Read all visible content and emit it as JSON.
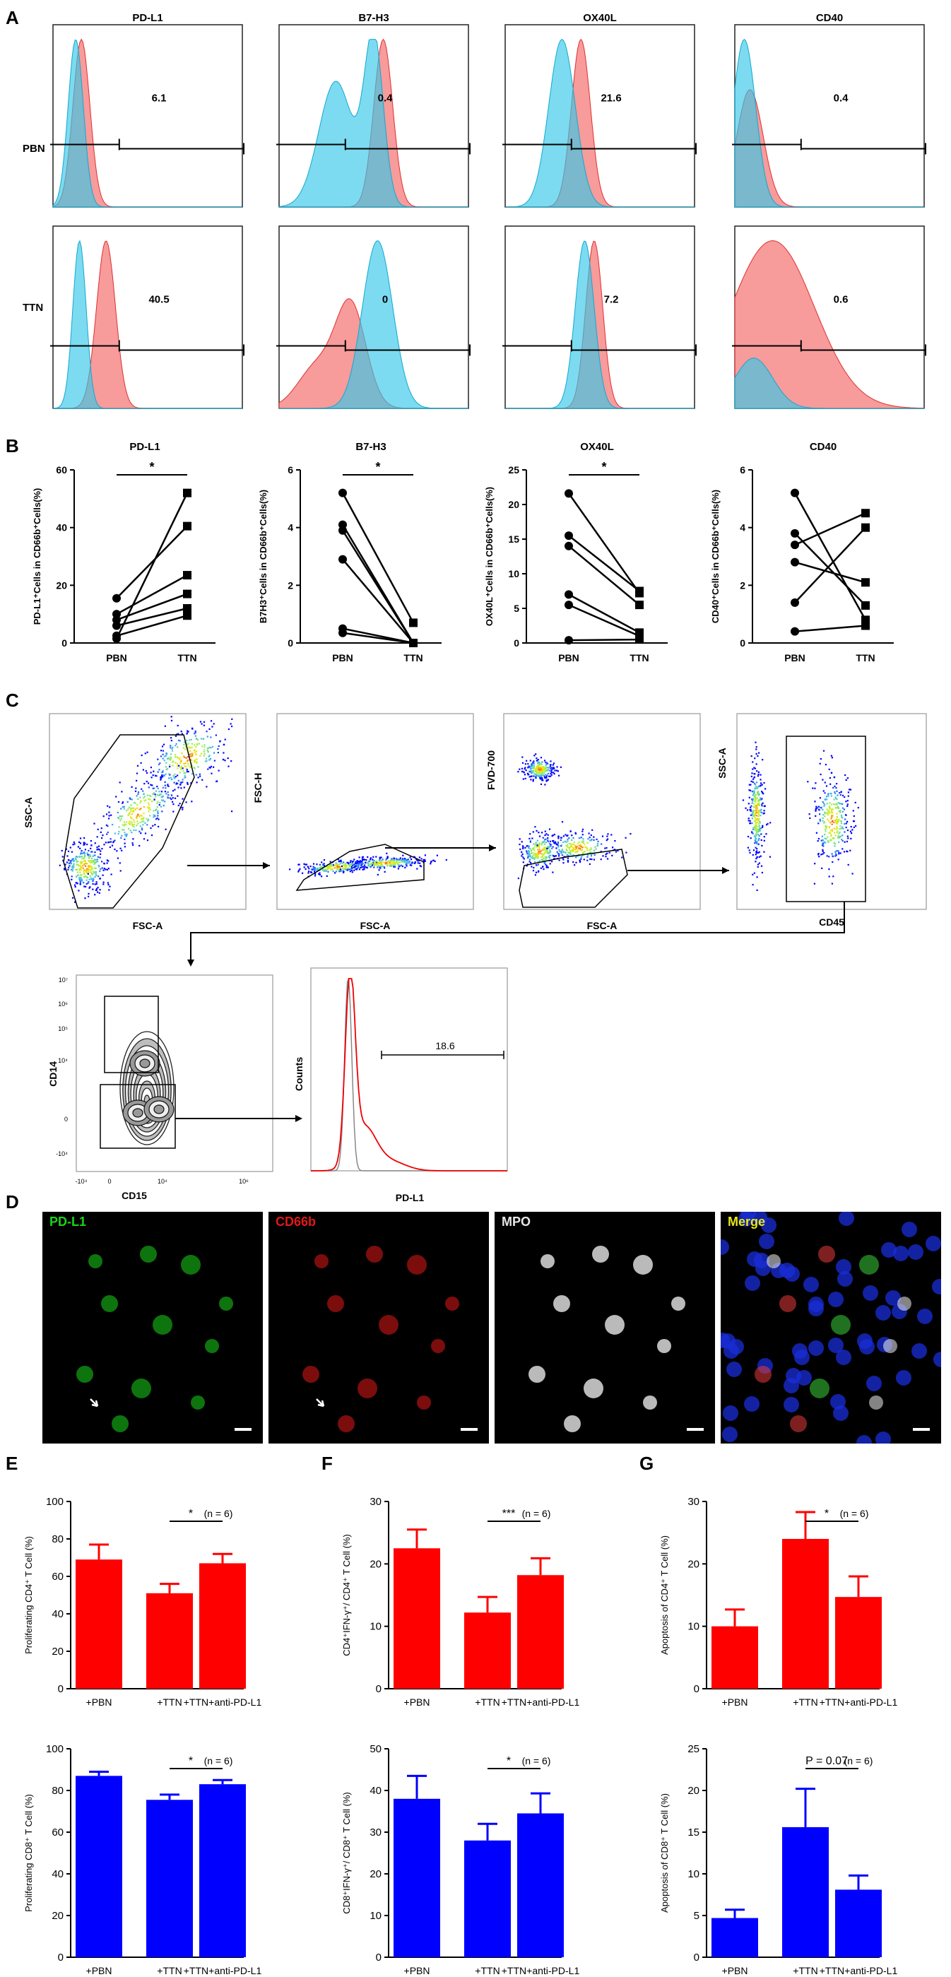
{
  "panel_letters": [
    "A",
    "B",
    "C",
    "D",
    "E",
    "F",
    "G"
  ],
  "flow_histograms": {
    "markers": [
      "PD-L1",
      "B7-H3",
      "OX40L",
      "CD40"
    ],
    "rows": [
      "PBN",
      "TTN"
    ],
    "values": [
      [
        "6.1",
        "0.4",
        "21.6",
        "0.4"
      ],
      [
        "40.5",
        "0",
        "7.2",
        "0.6"
      ]
    ]
  },
  "gating": {
    "plots": [
      {
        "x": "FSC-A",
        "y": "SSC-A"
      },
      {
        "x": "FSC-A",
        "y": "FSC-H"
      },
      {
        "x": "FSC-A",
        "y": "FVD-700"
      },
      {
        "x": "CD45",
        "y": "SSC-A"
      },
      {
        "x": "CD15",
        "y": "CD14"
      },
      {
        "x": "PD-L1",
        "y": "Counts",
        "gate_value": "18.6"
      }
    ],
    "ticks_y": [
      "10⁷",
      "10⁶",
      "10⁵",
      "10⁴",
      "0",
      "-10⁴"
    ],
    "ticks_x": [
      "-10⁴",
      "0",
      "10⁴",
      "10⁶"
    ]
  },
  "microscopy": [
    {
      "label": "PD-L1",
      "color": "#19d419"
    },
    {
      "label": "CD66b",
      "color": "#e01818"
    },
    {
      "label": "MPO",
      "color": "#e8e8e8"
    },
    {
      "label": "Merge",
      "color": "#e8e81a"
    }
  ],
  "chart_data": [
    {
      "panel": "B",
      "type": "line",
      "title": "PD-L1",
      "ylabel": "PD-L1⁺Cells in CD66b⁺Cells(%)",
      "categories": [
        "PBN",
        "TTN"
      ],
      "ylim": [
        0,
        60
      ],
      "yticks": [
        "0",
        "20",
        "40",
        "60"
      ],
      "pairs": [
        [
          15.5,
          40.5
        ],
        [
          10,
          23.5
        ],
        [
          8,
          17
        ],
        [
          6,
          12
        ],
        [
          2.5,
          9.5
        ],
        [
          1.5,
          52
        ]
      ],
      "sig": "*"
    },
    {
      "panel": "B",
      "type": "line",
      "title": "B7-H3",
      "ylabel": "B7H3⁺Cells in CD66b⁺Cells(%)",
      "categories": [
        "PBN",
        "TTN"
      ],
      "ylim": [
        0,
        6
      ],
      "yticks": [
        "0",
        "2",
        "4",
        "6"
      ],
      "pairs": [
        [
          5.2,
          0.7
        ],
        [
          4.1,
          0
        ],
        [
          3.9,
          0
        ],
        [
          2.9,
          0
        ],
        [
          0.5,
          0
        ],
        [
          0.35,
          0
        ]
      ],
      "sig": "*"
    },
    {
      "panel": "B",
      "type": "line",
      "title": "OX40L",
      "ylabel": "OX40L⁺Cells in CD66b⁺Cells(%)",
      "categories": [
        "PBN",
        "TTN"
      ],
      "ylim": [
        0,
        25
      ],
      "yticks": [
        "0",
        "5",
        "10",
        "15",
        "20",
        "25"
      ],
      "pairs": [
        [
          21.6,
          7.2
        ],
        [
          15.5,
          7.5
        ],
        [
          14,
          5.5
        ],
        [
          7,
          1.5
        ],
        [
          5.5,
          1
        ],
        [
          0.4,
          0.5
        ]
      ],
      "sig": "*"
    },
    {
      "panel": "B",
      "type": "line",
      "title": "CD40",
      "ylabel": "CD40⁺Cells in CD66b⁺Cells(%)",
      "categories": [
        "PBN",
        "TTN"
      ],
      "ylim": [
        0,
        6
      ],
      "yticks": [
        "0",
        "2",
        "4",
        "6"
      ],
      "pairs": [
        [
          5.2,
          0.8
        ],
        [
          3.8,
          1.3
        ],
        [
          3.4,
          4.5
        ],
        [
          2.8,
          2.1
        ],
        [
          1.4,
          4
        ],
        [
          0.4,
          0.6
        ]
      ],
      "sig": ""
    },
    {
      "panel": "E",
      "type": "bar",
      "ylabel": "Proliferating CD4⁺ T Cell (%)",
      "color": "#ff0000",
      "categories": [
        "+PBN",
        "+TTN",
        "+TTN+anti-PD-L1"
      ],
      "values": [
        69,
        51,
        67
      ],
      "errors": [
        8,
        5,
        5
      ],
      "ylim": [
        0,
        100
      ],
      "yticks": [
        "0",
        "20",
        "40",
        "60",
        "80",
        "100"
      ],
      "sig": "*",
      "n": "(n = 6)"
    },
    {
      "panel": "F",
      "type": "bar",
      "ylabel": "CD4⁺IFN-γ⁺/ CD4⁺ T Cell (%)",
      "color": "#ff0000",
      "categories": [
        "+PBN",
        "+TTN",
        "+TTN+anti-PD-L1"
      ],
      "values": [
        22.5,
        12.2,
        18.2
      ],
      "errors": [
        3,
        2.5,
        2.7
      ],
      "ylim": [
        0,
        30
      ],
      "yticks": [
        "0",
        "10",
        "20",
        "30"
      ],
      "sig": "***",
      "n": "(n = 6)"
    },
    {
      "panel": "G",
      "type": "bar",
      "ylabel": "Apoptosis of CD4⁺ T Cell (%)",
      "color": "#ff0000",
      "categories": [
        "+PBN",
        "+TTN",
        "+TTN+anti-PD-L1"
      ],
      "values": [
        10,
        24,
        14.7
      ],
      "errors": [
        2.7,
        4.3,
        3.3
      ],
      "ylim": [
        0,
        30
      ],
      "yticks": [
        "0",
        "10",
        "20",
        "30"
      ],
      "sig": "*",
      "n": "(n = 6)"
    },
    {
      "panel": "E",
      "type": "bar",
      "ylabel": "Proliferating CD8⁺ T Cell (%)",
      "color": "#0000ff",
      "categories": [
        "+PBN",
        "+TTN",
        "+TTN+anti-PD-L1"
      ],
      "values": [
        87,
        75.5,
        83
      ],
      "errors": [
        2,
        2.5,
        2
      ],
      "ylim": [
        0,
        100
      ],
      "yticks": [
        "0",
        "20",
        "40",
        "60",
        "80",
        "100"
      ],
      "sig": "*",
      "n": "(n = 6)"
    },
    {
      "panel": "F",
      "type": "bar",
      "ylabel": "CD8⁺IFN-γ⁺/ CD8⁺ T Cell (%)",
      "color": "#0000ff",
      "categories": [
        "+PBN",
        "+TTN",
        "+TTN+anti-PD-L1"
      ],
      "values": [
        38,
        28,
        34.5
      ],
      "errors": [
        5.5,
        4,
        4.8
      ],
      "ylim": [
        0,
        50
      ],
      "yticks": [
        "0",
        "10",
        "20",
        "30",
        "40",
        "50"
      ],
      "sig": "*",
      "n": "(n = 6)"
    },
    {
      "panel": "G",
      "type": "bar",
      "ylabel": "Apoptosis of CD8⁺ T Cell (%)",
      "color": "#0000ff",
      "categories": [
        "+PBN",
        "+TTN",
        "+TTN+anti-PD-L1"
      ],
      "values": [
        4.7,
        15.6,
        8.1
      ],
      "errors": [
        1,
        4.6,
        1.7
      ],
      "ylim": [
        0,
        25
      ],
      "yticks": [
        "0",
        "5",
        "10",
        "15",
        "20",
        "25"
      ],
      "sig": "P = 0.07",
      "n": "(n = 6)"
    }
  ]
}
